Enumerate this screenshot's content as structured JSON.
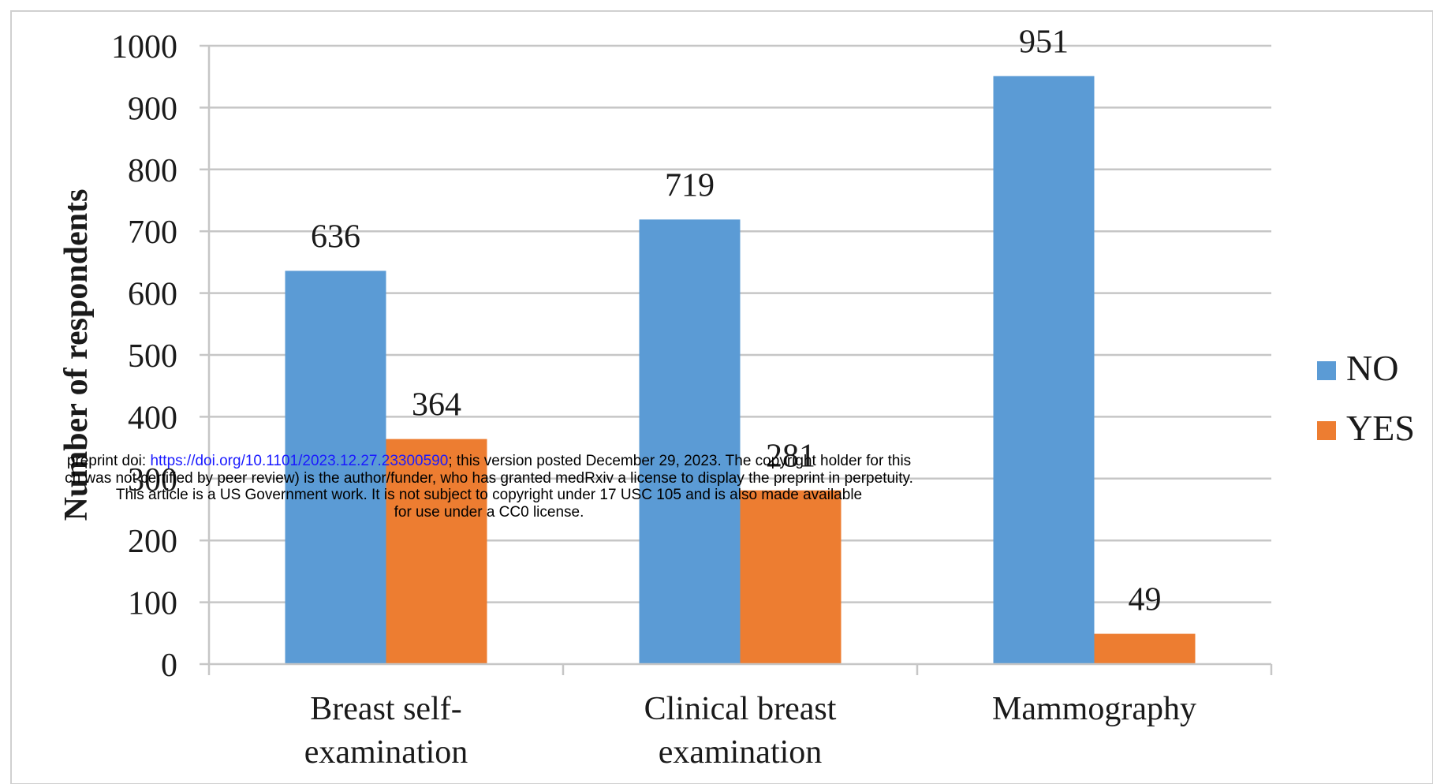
{
  "chart_data": {
    "type": "bar",
    "categories": [
      [
        "Breast self-",
        "examination"
      ],
      [
        "Clinical breast",
        "examination"
      ],
      [
        "Mammography"
      ]
    ],
    "series": [
      {
        "name": "NO",
        "color": "#5b9bd5",
        "values": [
          636,
          719,
          951
        ]
      },
      {
        "name": "YES",
        "color": "#ed7d31",
        "values": [
          364,
          281,
          49
        ]
      }
    ],
    "ylabel": "Number of respondents",
    "xlabel": "",
    "ylim": [
      0,
      1000
    ],
    "yticks": [
      0,
      100,
      200,
      300,
      400,
      500,
      600,
      700,
      800,
      900,
      1000
    ],
    "grid": true,
    "legend": "right"
  },
  "watermark": {
    "line1_prefix": "preprint doi: ",
    "line1_link": "https://doi.org/10.1101/2023.12.27.23300590",
    "line1_suffix": "; this version posted December 29, 2023. The copyright holder for this",
    "line2": "ch was not certified by peer review) is the author/funder, who has granted medRxiv a license to display the preprint in perpetuity.",
    "line3": "This article is a US Government work. It is not subject to copyright under 17 USC 105 and is also made available",
    "line4": "for use under a CC0 license."
  }
}
